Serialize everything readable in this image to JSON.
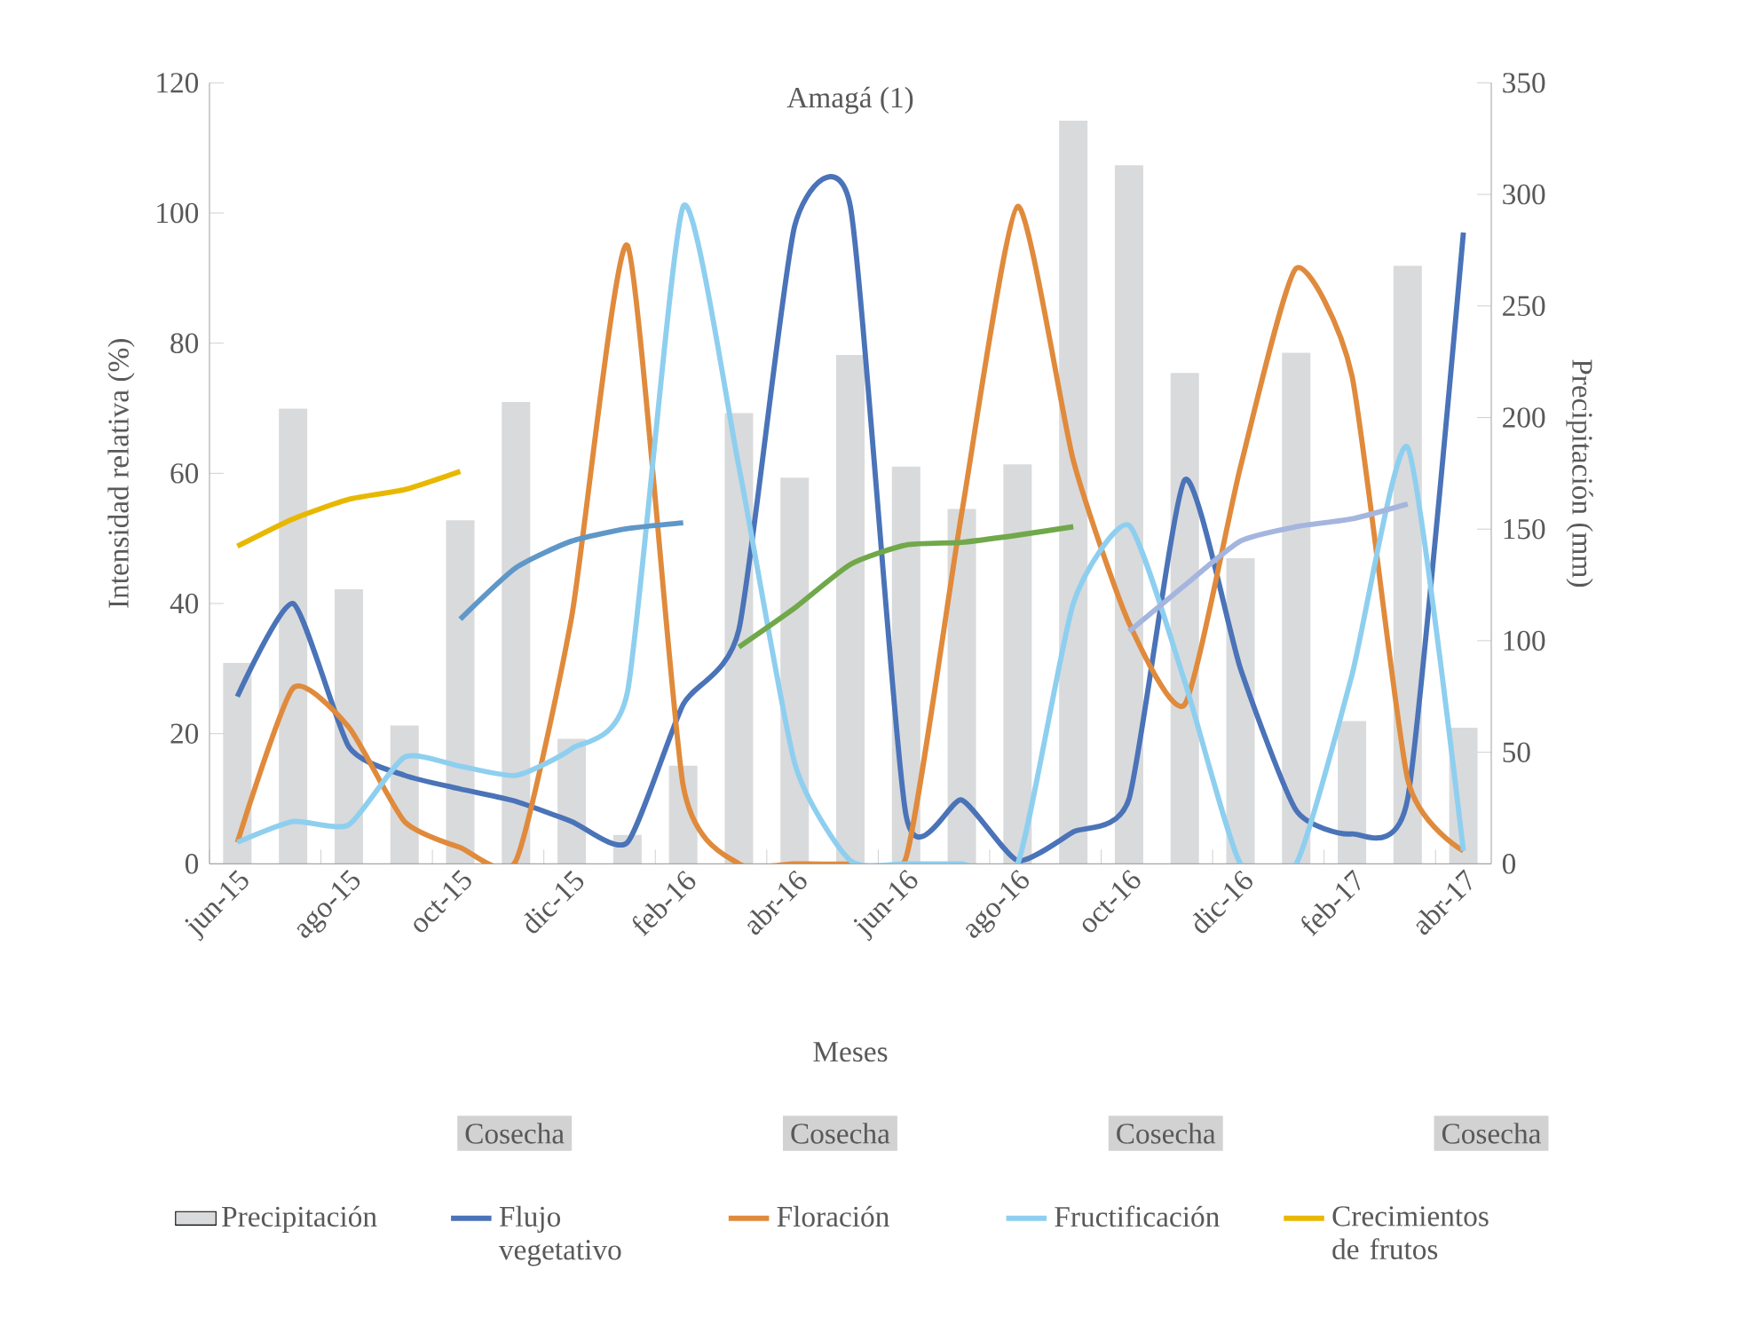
{
  "chart_data": {
    "type": "line",
    "title": "Amagá (1)",
    "xlabel": "Meses",
    "ylabel": "Intensidad relativa (%)",
    "y2label": "Precipitación (mm)",
    "categories": [
      "jun-15",
      null,
      "ago-15",
      null,
      "oct-15",
      null,
      "dic-15",
      null,
      "feb-16",
      null,
      "abr-16",
      null,
      "jun-16",
      null,
      "ago-16",
      null,
      "oct-16",
      null,
      "dic-16",
      null,
      "feb-17",
      null,
      "abr-17"
    ],
    "ylim": [
      0,
      120
    ],
    "yticks": [
      0,
      20,
      40,
      60,
      80,
      100,
      120
    ],
    "y2lim": [
      0,
      350
    ],
    "y2ticks": [
      0,
      50,
      100,
      150,
      200,
      250,
      300,
      350
    ],
    "legend": "bottom",
    "series": [
      {
        "name": "Precipitación",
        "type": "bar",
        "axis": "y2",
        "color": "#d9dadc",
        "values": [
          90,
          204,
          123,
          62,
          154,
          207,
          56,
          13,
          44,
          202,
          173,
          228,
          178,
          159,
          179,
          333,
          313,
          220,
          137,
          229,
          64,
          268,
          61
        ]
      },
      {
        "name": "Flujo vegetativo",
        "color": "#4a73b8",
        "values": [
          25.7,
          40,
          18,
          13.6,
          11.5,
          9.6,
          6.5,
          3.3,
          24.5,
          36,
          98,
          101,
          7.4,
          9.8,
          0.5,
          4.9,
          10,
          59,
          30,
          8.2,
          4.6,
          10,
          97
        ]
      },
      {
        "name": "Floración",
        "color": "#e08a3c",
        "values": [
          3.3,
          27,
          21,
          6.5,
          2.5,
          0.5,
          38,
          95,
          12,
          0,
          0,
          0,
          1,
          54,
          101,
          62,
          37,
          24.5,
          61,
          91.5,
          75,
          13,
          2
        ]
      },
      {
        "name": "Fructificación",
        "color": "#8ecfef",
        "values": [
          3.3,
          6.5,
          6,
          16.4,
          15,
          13.6,
          17.7,
          26.4,
          101,
          61,
          15.5,
          0.5,
          0,
          0,
          0,
          40,
          52,
          28,
          0,
          0,
          29,
          64,
          2
        ]
      },
      {
        "name": "Crecimientos de frutos",
        "color": "#e8b800",
        "values": [
          48.8,
          53,
          56,
          57.5,
          60.3,
          null,
          null,
          null,
          null,
          null,
          null,
          null,
          null,
          null,
          null,
          null,
          null,
          null,
          null,
          null,
          null,
          null,
          null
        ]
      },
      {
        "color": "#5f97c8",
        "values": [
          null,
          null,
          null,
          null,
          37.6,
          45.5,
          49.6,
          51.5,
          52.4,
          null,
          null,
          null,
          null,
          null,
          null,
          null,
          null,
          null,
          null,
          null,
          null,
          null,
          null
        ]
      },
      {
        "color": "#70a84a",
        "values": [
          null,
          null,
          null,
          null,
          null,
          null,
          null,
          null,
          null,
          33.3,
          39.3,
          46,
          49,
          49.4,
          50.5,
          51.8,
          null,
          null,
          null,
          null,
          null,
          null,
          null
        ]
      },
      {
        "color": "#a4b5de",
        "values": [
          null,
          null,
          null,
          null,
          null,
          null,
          null,
          null,
          null,
          null,
          null,
          null,
          null,
          null,
          null,
          null,
          35.7,
          42.8,
          49.6,
          51.8,
          53,
          55.3,
          null
        ]
      }
    ],
    "annotations": [
      "Cosecha",
      "Cosecha",
      "Cosecha",
      "Cosecha"
    ]
  }
}
